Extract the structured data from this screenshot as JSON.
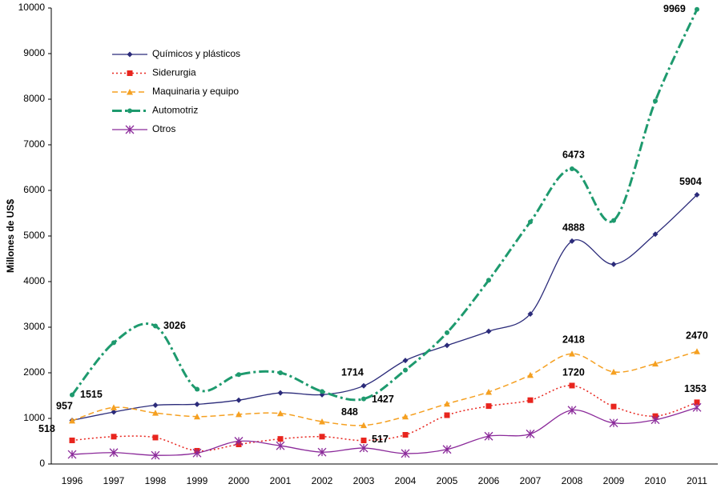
{
  "chart_data": {
    "type": "line",
    "y_label": "Millones de US$",
    "categories": [
      "1996",
      "1997",
      "1998",
      "1999",
      "2000",
      "2001",
      "2002",
      "2003",
      "2004",
      "2005",
      "2006",
      "2007",
      "2008",
      "2009",
      "2010",
      "2011"
    ],
    "ylim": [
      0,
      10000
    ],
    "yticks": [
      0,
      1000,
      2000,
      3000,
      4000,
      5000,
      6000,
      7000,
      8000,
      9000,
      10000
    ],
    "grid": false,
    "legend": "upper-left",
    "series": [
      {
        "name": "Químicos y plásticos",
        "color": "#2b2b7a",
        "marker": "diamond",
        "dash": "solid",
        "values": [
          957,
          1140,
          1290,
          1310,
          1400,
          1560,
          1520,
          1714,
          2270,
          2600,
          2910,
          3290,
          4888,
          4380,
          5040,
          5904
        ]
      },
      {
        "name": "Siderurgia",
        "color": "#e8251e",
        "marker": "square",
        "dash": "dotted",
        "values": [
          518,
          600,
          580,
          290,
          430,
          550,
          600,
          517,
          640,
          1070,
          1270,
          1400,
          1720,
          1260,
          1050,
          1353
        ]
      },
      {
        "name": "Maquinaria y equipo",
        "color": "#f5a021",
        "marker": "triangle",
        "dash": "dashed",
        "values": [
          950,
          1240,
          1120,
          1040,
          1090,
          1110,
          930,
          848,
          1040,
          1320,
          1580,
          1950,
          2418,
          2020,
          2200,
          2470
        ]
      },
      {
        "name": "Automotriz",
        "color": "#1e9a6e",
        "marker": "circle",
        "dash": "dashdot",
        "values": [
          1515,
          2660,
          3026,
          1640,
          1960,
          2000,
          1590,
          1427,
          2060,
          2880,
          4030,
          5310,
          6473,
          5340,
          7960,
          9969
        ]
      },
      {
        "name": "Otros",
        "color": "#8b2a9a",
        "marker": "star",
        "dash": "solid",
        "values": [
          210,
          250,
          190,
          240,
          500,
          400,
          260,
          350,
          230,
          320,
          610,
          660,
          1180,
          900,
          970,
          1240
        ]
      }
    ]
  }
}
